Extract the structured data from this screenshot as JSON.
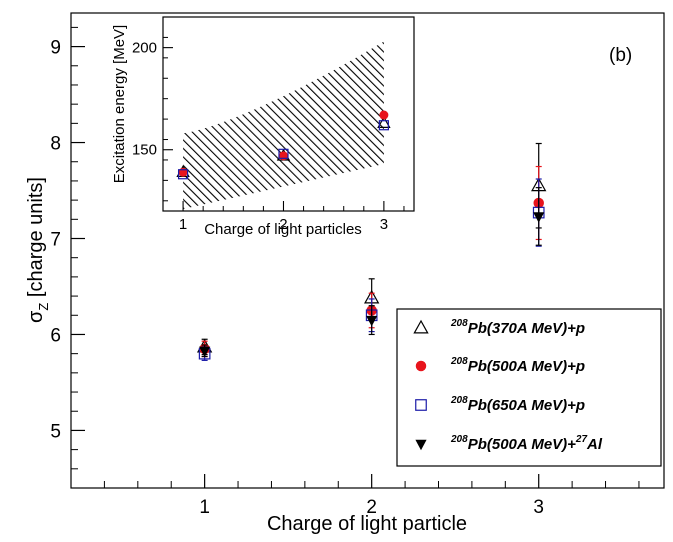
{
  "chart_data": [
    {
      "type": "scatter",
      "panel_label": "(b)",
      "xlabel": "Charge of light particle",
      "ylabel_main": "σ",
      "ylabel_sub": "Z",
      "ylabel_rest": " [charge units]",
      "xlim": [
        0.2,
        3.75
      ],
      "ylim": [
        4.4,
        9.35
      ],
      "xticks": [
        "1",
        "2",
        "3"
      ],
      "xtick_values": [
        1,
        2,
        3
      ],
      "yticks": [
        "5",
        "6",
        "7",
        "8",
        "9"
      ],
      "ytick_values": [
        5,
        6,
        7,
        8,
        9
      ],
      "grid": false,
      "legend_position": "bottom-right",
      "series": [
        {
          "legend_pre": "208",
          "legend_main": "Pb(370A MeV)+p",
          "legend_sup2": "",
          "legend_tail": "",
          "marker": "triangle-open",
          "color": "#000000",
          "x": [
            1,
            2,
            3
          ],
          "y": [
            5.87,
            6.38,
            7.55
          ],
          "err": [
            0.08,
            0.2,
            0.44
          ]
        },
        {
          "legend_pre": "208",
          "legend_main": "Pb(500A MeV)+p",
          "legend_sup2": "",
          "legend_tail": "",
          "marker": "circle-filled",
          "color": "#e8141c",
          "x": [
            1,
            2,
            3
          ],
          "y": [
            5.85,
            6.25,
            7.37
          ],
          "err": [
            0.08,
            0.18,
            0.38
          ]
        },
        {
          "legend_pre": "208",
          "legend_main": "Pb(650A MeV)+p",
          "legend_sup2": "",
          "legend_tail": "",
          "marker": "square-open",
          "color": "#1a1aa8",
          "x": [
            1,
            2,
            3
          ],
          "y": [
            5.8,
            6.2,
            7.27
          ],
          "err": [
            0.07,
            0.17,
            0.35
          ]
        },
        {
          "legend_pre": "208",
          "legend_main": "Pb(500A MeV)+",
          "legend_sup2": "27",
          "legend_tail": "Al",
          "marker": "triangle-down-filled",
          "color": "#000000",
          "x": [
            1,
            2,
            3
          ],
          "y": [
            5.83,
            6.15,
            7.23
          ],
          "err": [
            0.06,
            0.15,
            0.3
          ]
        }
      ]
    },
    {
      "type": "scatter",
      "xlabel": "Charge of light particles",
      "ylabel": "Excitation energy [MeV]",
      "xlim": [
        0.8,
        3.3
      ],
      "ylim": [
        120,
        215
      ],
      "xticks": [
        "1",
        "2",
        "3"
      ],
      "xtick_values": [
        1,
        2,
        3
      ],
      "yticks": [
        "150",
        "200"
      ],
      "ytick_values": [
        150,
        200
      ],
      "band": {
        "x": [
          1,
          3
        ],
        "lower": [
          121,
          143
        ],
        "upper": [
          158,
          203
        ]
      },
      "series": [
        {
          "marker": "triangle-open",
          "color": "#000000",
          "x": [
            1,
            2,
            3
          ],
          "y": [
            139,
            147,
            163
          ]
        },
        {
          "marker": "circle-filled",
          "color": "#e8141c",
          "x": [
            1,
            2,
            3
          ],
          "y": [
            139,
            147,
            167
          ]
        },
        {
          "marker": "square-open",
          "color": "#1a1aa8",
          "x": [
            1,
            2,
            3
          ],
          "y": [
            138,
            148,
            162
          ]
        }
      ]
    }
  ]
}
